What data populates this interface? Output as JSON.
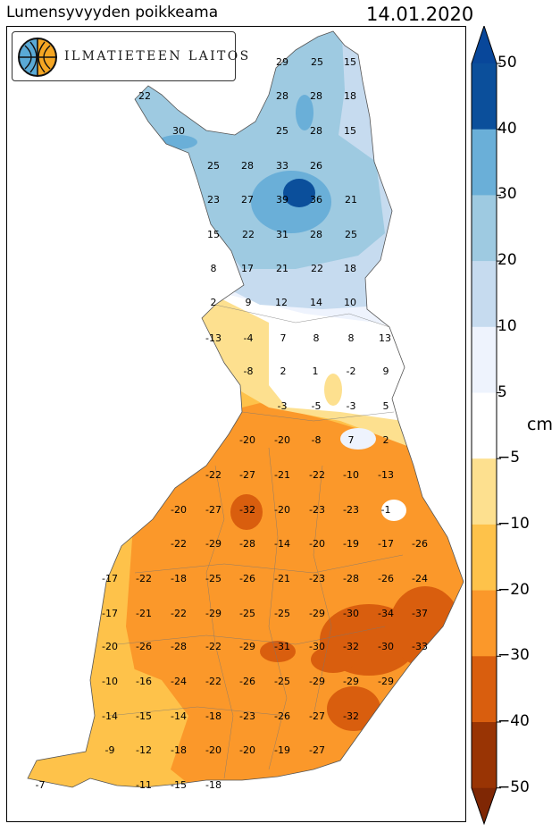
{
  "title": "Lumensyvyyden poikkeama",
  "date": "14.01.2020",
  "logo": {
    "text": "ILMATIETEEN LAITOS",
    "icon": "fmi-logo-icon"
  },
  "colorbar": {
    "unit": "cm",
    "tick_labels": [
      "50",
      "40",
      "30",
      "20",
      "10",
      "5",
      "−5",
      "−10",
      "−20",
      "−30",
      "−40",
      "−50"
    ],
    "classes": [
      {
        "from": 40,
        "to": 50,
        "color": "#0b4f9b"
      },
      {
        "from": 30,
        "to": 40,
        "color": "#6aafd8"
      },
      {
        "from": 20,
        "to": 30,
        "color": "#9ecae1"
      },
      {
        "from": 10,
        "to": 20,
        "color": "#c6dbef"
      },
      {
        "from": 5,
        "to": 10,
        "color": "#eef3fd"
      },
      {
        "from": -5,
        "to": 5,
        "color": "#ffffff"
      },
      {
        "from": -10,
        "to": -5,
        "color": "#fde08f"
      },
      {
        "from": -20,
        "to": -10,
        "color": "#fec24a"
      },
      {
        "from": -30,
        "to": -20,
        "color": "#fb982a"
      },
      {
        "from": -40,
        "to": -30,
        "color": "#d95e0e"
      },
      {
        "from": -50,
        "to": -40,
        "color": "#993404"
      }
    ],
    "over_color": "#08479a",
    "under_color": "#7f2704"
  },
  "station_values": [
    [
      "29",
      "25",
      "15"
    ],
    [
      "22",
      "28",
      "28",
      "18"
    ],
    [
      "30",
      "25",
      "28",
      "15"
    ],
    [
      "25",
      "28",
      "33",
      "26"
    ],
    [
      "23",
      "27",
      "39",
      "36",
      "21"
    ],
    [
      "15",
      "22",
      "31",
      "28",
      "25"
    ],
    [
      "8",
      "17",
      "21",
      "22",
      "18"
    ],
    [
      "2",
      "9",
      "12",
      "14",
      "10"
    ],
    [
      "-13",
      "-4",
      "7",
      "8",
      "8",
      "13"
    ],
    [
      "-8",
      "2",
      "1",
      "-2",
      "9"
    ],
    [
      "-3",
      "-5",
      "-3",
      "5"
    ],
    [
      "-20",
      "-20",
      "-8",
      "7",
      "2"
    ],
    [
      "-22",
      "-27",
      "-21",
      "-22",
      "-10",
      "-13"
    ],
    [
      "-20",
      "-27",
      "-32",
      "-20",
      "-23",
      "-23",
      "-1"
    ],
    [
      "-22",
      "-29",
      "-28",
      "-14",
      "-20",
      "-19",
      "-17",
      "-26"
    ],
    [
      "-17",
      "-22",
      "-18",
      "-25",
      "-26",
      "-21",
      "-23",
      "-28",
      "-26",
      "-24"
    ],
    [
      "-17",
      "-21",
      "-22",
      "-29",
      "-25",
      "-25",
      "-29",
      "-30",
      "-34",
      "-37"
    ],
    [
      "-20",
      "-26",
      "-28",
      "-22",
      "-29",
      "-31",
      "-30",
      "-32",
      "-30",
      "-33"
    ],
    [
      "-10",
      "-16",
      "-24",
      "-22",
      "-26",
      "-25",
      "-29",
      "-29",
      "-29"
    ],
    [
      "-14",
      "-15",
      "-14",
      "-18",
      "-23",
      "-26",
      "-27",
      "-32"
    ],
    [
      "-9",
      "-12",
      "-18",
      "-20",
      "-20",
      "-19",
      "-27"
    ],
    [
      "-7",
      "-11",
      "-15",
      "-18"
    ]
  ]
}
